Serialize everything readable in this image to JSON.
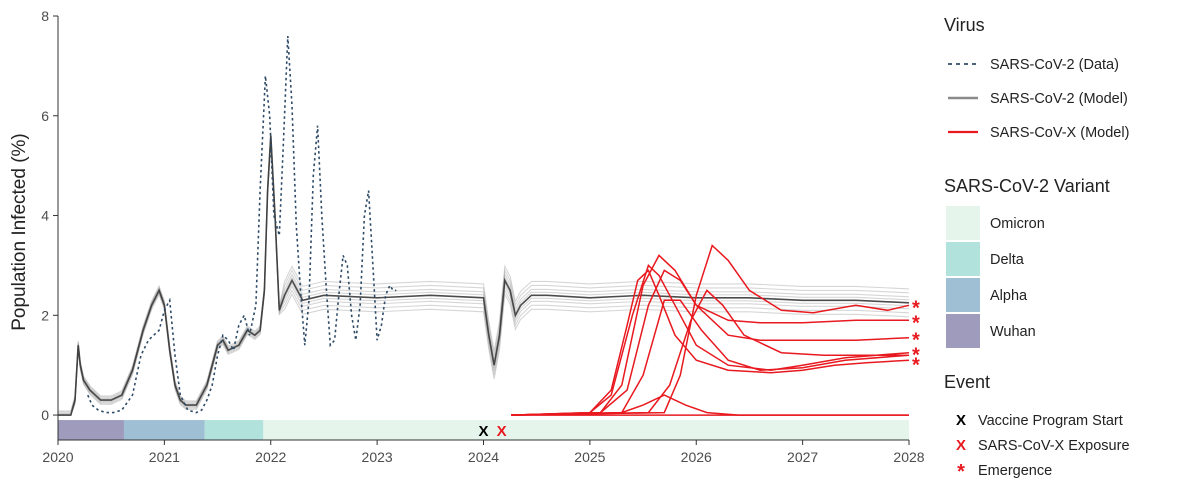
{
  "chart_data": {
    "type": "line",
    "title": "",
    "xlabel": "",
    "ylabel": "Population Infected (%)",
    "xlim": [
      2020,
      2028
    ],
    "ylim": [
      -0.5,
      8
    ],
    "x_ticks": [
      "2020",
      "2021",
      "2022",
      "2023",
      "2024",
      "2025",
      "2026",
      "2027",
      "2028"
    ],
    "y_ticks": [
      "0",
      "2",
      "4",
      "6",
      "8"
    ],
    "grid": false,
    "colors": {
      "data": "#2e4a66",
      "model": "#8a8a8a",
      "model_x": "#e8191f",
      "omicron": "#e5f5ec",
      "delta": "#b2e2dc",
      "alpha": "#9fc0d4",
      "wuhan": "#9e9bbc"
    },
    "series": [
      {
        "name": "SARS-CoV-2 (Data)",
        "x": [
          2020.28,
          2020.32,
          2020.38,
          2020.45,
          2020.52,
          2020.6,
          2020.7,
          2020.78,
          2020.85,
          2020.9,
          2020.95,
          2021.0,
          2021.05,
          2021.1,
          2021.15,
          2021.22,
          2021.3,
          2021.35,
          2021.4,
          2021.45,
          2021.5,
          2021.55,
          2021.6,
          2021.65,
          2021.7,
          2021.75,
          2021.8,
          2021.86,
          2021.9,
          2021.95,
          2021.99,
          2022.03,
          2022.08,
          2022.12,
          2022.16,
          2022.2,
          2022.24,
          2022.28,
          2022.32,
          2022.36,
          2022.4,
          2022.44,
          2022.48,
          2022.52,
          2022.56,
          2022.6,
          2022.64,
          2022.68,
          2022.72,
          2022.76,
          2022.8,
          2022.84,
          2022.88,
          2022.92,
          2022.96,
          2023.0,
          2023.04,
          2023.08,
          2023.12,
          2023.15,
          2023.18
        ],
        "values": [
          0.4,
          0.2,
          0.1,
          0.05,
          0.05,
          0.1,
          0.4,
          1.2,
          1.5,
          1.6,
          1.7,
          2.1,
          2.3,
          1.2,
          0.4,
          0.1,
          0.05,
          0.1,
          0.3,
          0.6,
          1.2,
          1.6,
          1.5,
          1.3,
          1.8,
          2.0,
          1.6,
          2.2,
          4.5,
          6.8,
          6.0,
          4.0,
          3.6,
          5.5,
          7.6,
          6.2,
          3.8,
          2.5,
          1.4,
          2.3,
          4.8,
          5.8,
          4.0,
          2.6,
          1.4,
          1.5,
          2.4,
          3.2,
          3.0,
          2.0,
          1.5,
          2.2,
          4.0,
          4.5,
          3.0,
          1.5,
          1.8,
          2.4,
          2.6,
          2.5,
          2.5
        ]
      },
      {
        "name": "SARS-CoV-2 (Model)",
        "x": [
          2020.0,
          2020.12,
          2020.16,
          2020.19,
          2020.21,
          2020.24,
          2020.3,
          2020.4,
          2020.5,
          2020.6,
          2020.7,
          2020.8,
          2020.88,
          2020.95,
          2021.0,
          2021.05,
          2021.1,
          2021.15,
          2021.2,
          2021.3,
          2021.4,
          2021.5,
          2021.55,
          2021.6,
          2021.7,
          2021.78,
          2021.85,
          2021.9,
          2021.94,
          2021.97,
          2022.0,
          2022.04,
          2022.08,
          2022.13,
          2022.2,
          2022.3,
          2022.4,
          2022.5,
          2023.0,
          2023.5,
          2024.0,
          2024.05,
          2024.1,
          2024.15,
          2024.2,
          2024.25,
          2024.3,
          2024.35,
          2024.45,
          2024.6,
          2025.0,
          2025.5,
          2026.0,
          2026.5,
          2027.0,
          2027.5,
          2028.0
        ],
        "values": [
          0,
          0,
          0.3,
          1.4,
          1.0,
          0.7,
          0.5,
          0.3,
          0.3,
          0.4,
          0.9,
          1.7,
          2.2,
          2.5,
          2.2,
          1.3,
          0.6,
          0.3,
          0.2,
          0.2,
          0.6,
          1.4,
          1.5,
          1.3,
          1.4,
          1.7,
          1.6,
          1.7,
          2.5,
          4.5,
          5.6,
          4.0,
          2.1,
          2.4,
          2.7,
          2.3,
          2.35,
          2.4,
          2.35,
          2.4,
          2.35,
          1.6,
          1.0,
          1.6,
          2.7,
          2.5,
          2.0,
          2.2,
          2.4,
          2.4,
          2.35,
          2.4,
          2.35,
          2.35,
          2.3,
          2.3,
          2.25
        ]
      },
      {
        "name": "SARS-CoV-X (Model)",
        "runs": [
          {
            "x": [
              2024.26,
              2025.0,
              2025.2,
              2025.35,
              2025.45,
              2025.55,
              2025.65,
              2025.8,
              2026.0,
              2026.3,
              2026.7,
              2027.0,
              2027.3,
              2027.6,
              2028.0
            ],
            "values": [
              0,
              0.05,
              0.5,
              1.8,
              2.7,
              2.9,
              2.4,
              1.6,
              1.1,
              0.9,
              0.85,
              0.9,
              1.0,
              1.05,
              1.1
            ]
          },
          {
            "x": [
              2024.26,
              2025.0,
              2025.2,
              2025.4,
              2025.55,
              2025.65,
              2025.8,
              2026.0,
              2026.3,
              2026.7,
              2027.0,
              2027.4,
              2028.0
            ],
            "values": [
              0,
              0.05,
              0.4,
              2.0,
              3.0,
              2.8,
              2.2,
              1.4,
              1.0,
              0.9,
              1.0,
              1.15,
              1.25
            ]
          },
          {
            "x": [
              2024.26,
              2025.1,
              2025.3,
              2025.5,
              2025.65,
              2025.8,
              2026.0,
              2026.3,
              2026.6,
              2027.0,
              2027.5,
              2028.0
            ],
            "values": [
              0,
              0.05,
              0.6,
              2.6,
              3.2,
              2.9,
              2.2,
              1.6,
              1.5,
              1.5,
              1.5,
              1.55
            ]
          },
          {
            "x": [
              2024.26,
              2025.1,
              2025.35,
              2025.55,
              2025.7,
              2025.85,
              2026.0,
              2026.3,
              2026.6,
              2027.0,
              2027.5,
              2028.0
            ],
            "values": [
              0,
              0.05,
              0.5,
              2.2,
              2.9,
              2.7,
              2.2,
              1.9,
              1.85,
              1.85,
              1.9,
              1.9
            ]
          },
          {
            "x": [
              2024.26,
              2025.7,
              2025.85,
              2026.0,
              2026.15,
              2026.3,
              2026.5,
              2026.8,
              2027.1,
              2027.5,
              2027.8,
              2028.0
            ],
            "values": [
              0,
              0.05,
              0.8,
              2.4,
              3.4,
              3.1,
              2.5,
              2.1,
              2.05,
              2.2,
              2.1,
              2.2
            ]
          },
          {
            "x": [
              2024.26,
              2025.55,
              2025.75,
              2025.95,
              2026.1,
              2026.25,
              2026.45,
              2026.8,
              2027.2,
              2027.6,
              2028.0
            ],
            "values": [
              0,
              0.05,
              0.6,
              1.9,
              2.5,
              2.2,
              1.6,
              1.25,
              1.2,
              1.2,
              1.2
            ]
          },
          {
            "x": [
              2024.26,
              2025.3,
              2025.5,
              2025.7,
              2025.85,
              2026.05,
              2026.3,
              2026.6,
              2027.0,
              2027.4,
              2028.0
            ],
            "values": [
              0,
              0.05,
              0.8,
              2.3,
              2.3,
              1.7,
              1.1,
              0.9,
              0.95,
              1.1,
              1.2
            ]
          },
          {
            "x": [
              2024.26,
              2025.3,
              2025.5,
              2025.7,
              2025.9,
              2026.1,
              2026.4,
              2026.8,
              2028.0
            ],
            "values": [
              0,
              0.05,
              0.2,
              0.4,
              0.2,
              0.05,
              0,
              0,
              0
            ]
          },
          {
            "x": [
              2024.26,
              2028.0
            ],
            "values": [
              0,
              0
            ]
          }
        ]
      }
    ],
    "variant_bands": [
      {
        "name": "Wuhan",
        "start": 2020.0,
        "end": 2020.62,
        "color": "#9e9bbc"
      },
      {
        "name": "Alpha",
        "start": 2020.62,
        "end": 2021.38,
        "color": "#9fc0d4"
      },
      {
        "name": "Delta",
        "start": 2021.38,
        "end": 2021.93,
        "color": "#b2e2dc"
      },
      {
        "name": "Omicron",
        "start": 2021.93,
        "end": 2028.0,
        "color": "#e5f5ec"
      }
    ],
    "events": [
      {
        "name": "Vaccine Program Start",
        "symbol": "X",
        "x": 2024.0,
        "color": "#000000"
      },
      {
        "name": "SARS-CoV-X Exposure",
        "symbol": "X",
        "x": 2024.17,
        "color": "#e8191f"
      }
    ],
    "emergence_markers": [
      {
        "symbol": "*",
        "y": 2.2
      },
      {
        "symbol": "*",
        "y": 1.9
      },
      {
        "symbol": "*",
        "y": 1.55
      },
      {
        "symbol": "*",
        "y": 1.25
      },
      {
        "symbol": "*",
        "y": 1.05
      }
    ],
    "legend": {
      "placement": "right",
      "virus_title": "Virus",
      "virus_items": [
        "SARS-CoV-2 (Data)",
        "SARS-CoV-2 (Model)",
        "SARS-CoV-X (Model)"
      ],
      "variant_title": "SARS-CoV-2 Variant",
      "variant_items": [
        "Omicron",
        "Delta",
        "Alpha",
        "Wuhan"
      ],
      "event_title": "Event",
      "event_items": [
        {
          "symbol": "X",
          "label": "Vaccine Program Start"
        },
        {
          "symbol": "X",
          "label": "SARS-CoV-X Exposure"
        },
        {
          "symbol": "*",
          "label": "Emergence"
        }
      ]
    }
  }
}
